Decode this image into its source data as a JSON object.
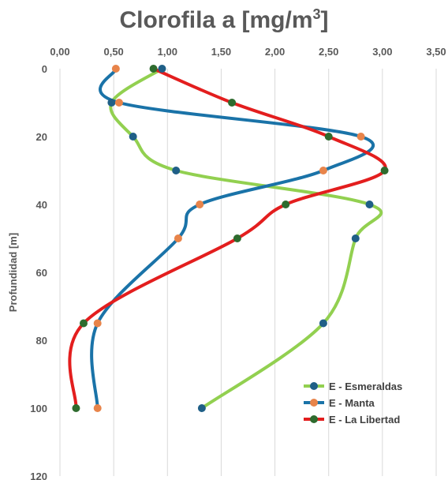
{
  "chart_data": {
    "type": "line",
    "title": "Clorofila a [mg/m",
    "title_sup": "3",
    "title_end": "]",
    "ylabel": "Profundidad [m]",
    "xlabel": "",
    "xlim": [
      0,
      3.5
    ],
    "ylim": [
      0,
      120
    ],
    "y_inverted": true,
    "x_axis_position": "top",
    "x_ticks": [
      "0,00",
      "0,50",
      "1,00",
      "1,50",
      "2,00",
      "2,50",
      "3,00",
      "3,50"
    ],
    "y_ticks": [
      "0",
      "20",
      "40",
      "60",
      "80",
      "100",
      "120"
    ],
    "grid": "vertical",
    "legend_position": "bottom-right",
    "series": [
      {
        "name": "E - Esmeraldas",
        "line_color": "#92d050",
        "marker_color": "#1f5f87",
        "points": [
          [
            0.95,
            0
          ],
          [
            0.48,
            10
          ],
          [
            0.68,
            20
          ],
          [
            1.08,
            30
          ],
          [
            2.88,
            40
          ],
          [
            2.75,
            50
          ],
          [
            2.45,
            75
          ],
          [
            1.32,
            100
          ]
        ]
      },
      {
        "name": "E - Manta",
        "line_color": "#1a73a8",
        "marker_color": "#e8844a",
        "points": [
          [
            0.52,
            0
          ],
          [
            0.55,
            10
          ],
          [
            2.8,
            20
          ],
          [
            2.45,
            30
          ],
          [
            1.3,
            40
          ],
          [
            1.1,
            50
          ],
          [
            0.35,
            75
          ],
          [
            0.35,
            100
          ]
        ]
      },
      {
        "name": "E - La Libertad",
        "line_color": "#e31e1e",
        "marker_color": "#2e6b2e",
        "points": [
          [
            0.87,
            0
          ],
          [
            1.6,
            10
          ],
          [
            2.5,
            20
          ],
          [
            3.02,
            30
          ],
          [
            2.1,
            40
          ],
          [
            1.65,
            50
          ],
          [
            0.22,
            75
          ],
          [
            0.15,
            100
          ]
        ]
      }
    ]
  }
}
